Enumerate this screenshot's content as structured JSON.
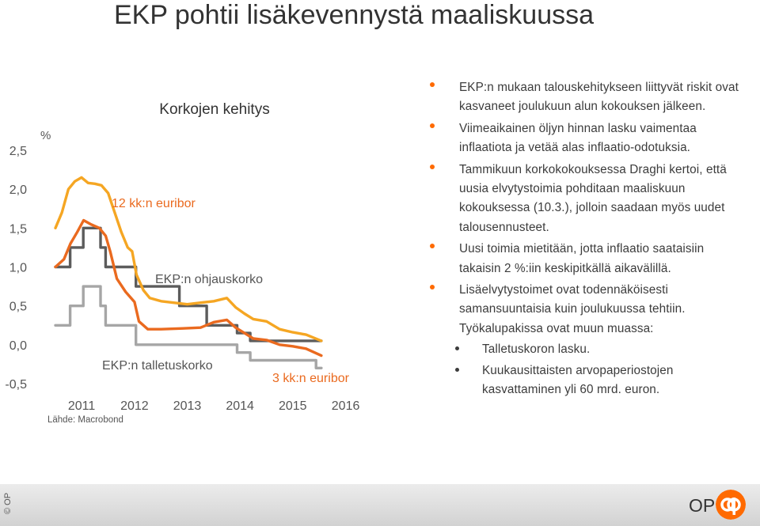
{
  "slide": {
    "title": "EKP pohtii lisäkevennystä maaliskuussa"
  },
  "colors": {
    "accent": "#ff6a00",
    "euribor12m": "#f5a623",
    "euribor3m": "#ea6a1f",
    "ecb_rate": "#5c5c5c",
    "deposit_rate": "#a6a6a6"
  },
  "chart_data": {
    "type": "line",
    "title": "Korkojen kehitys",
    "unit": "%",
    "ylim": [
      -0.5,
      2.5
    ],
    "yticks": [
      "2,5",
      "2,0",
      "1,5",
      "1,0",
      "0,5",
      "0,0",
      "-0,5"
    ],
    "xticks": [
      "2011",
      "2012",
      "2013",
      "2014",
      "2015",
      "2016"
    ],
    "source": "Lähde: Macrobond",
    "grid": false,
    "series": [
      {
        "name": "12 kk:n euribor",
        "step": false,
        "points": [
          [
            "2011-01-01",
            1.5
          ],
          [
            "2011-02-15",
            1.7
          ],
          [
            "2011-04-01",
            2.0
          ],
          [
            "2011-05-15",
            2.1
          ],
          [
            "2011-07-01",
            2.15
          ],
          [
            "2011-08-15",
            2.08
          ],
          [
            "2011-10-01",
            2.07
          ],
          [
            "2011-11-15",
            2.05
          ],
          [
            "2012-01-01",
            1.95
          ],
          [
            "2012-02-15",
            1.7
          ],
          [
            "2012-04-01",
            1.45
          ],
          [
            "2012-05-15",
            1.25
          ],
          [
            "2012-06-15",
            1.2
          ],
          [
            "2012-07-15",
            0.9
          ],
          [
            "2012-09-01",
            0.7
          ],
          [
            "2012-10-15",
            0.6
          ],
          [
            "2013-01-01",
            0.56
          ],
          [
            "2013-07-01",
            0.52
          ],
          [
            "2013-10-01",
            0.54
          ],
          [
            "2014-01-01",
            0.56
          ],
          [
            "2014-04-01",
            0.6
          ],
          [
            "2014-06-01",
            0.48
          ],
          [
            "2014-08-01",
            0.4
          ],
          [
            "2014-10-01",
            0.33
          ],
          [
            "2015-01-01",
            0.3
          ],
          [
            "2015-04-01",
            0.2
          ],
          [
            "2015-07-01",
            0.16
          ],
          [
            "2015-10-01",
            0.13
          ],
          [
            "2016-01-15",
            0.05
          ]
        ]
      },
      {
        "name": "3 kk:n euribor",
        "step": false,
        "points": [
          [
            "2011-01-01",
            1.0
          ],
          [
            "2011-03-01",
            1.1
          ],
          [
            "2011-04-15",
            1.3
          ],
          [
            "2011-06-01",
            1.45
          ],
          [
            "2011-07-15",
            1.6
          ],
          [
            "2011-09-01",
            1.55
          ],
          [
            "2011-11-01",
            1.5
          ],
          [
            "2011-12-15",
            1.4
          ],
          [
            "2012-01-15",
            1.2
          ],
          [
            "2012-03-01",
            0.85
          ],
          [
            "2012-05-01",
            0.68
          ],
          [
            "2012-07-01",
            0.55
          ],
          [
            "2012-08-01",
            0.3
          ],
          [
            "2012-10-01",
            0.2
          ],
          [
            "2013-01-01",
            0.2
          ],
          [
            "2013-06-01",
            0.21
          ],
          [
            "2013-10-01",
            0.22
          ],
          [
            "2014-01-01",
            0.29
          ],
          [
            "2014-04-01",
            0.32
          ],
          [
            "2014-06-01",
            0.22
          ],
          [
            "2014-08-01",
            0.15
          ],
          [
            "2014-10-01",
            0.08
          ],
          [
            "2015-01-01",
            0.06
          ],
          [
            "2015-04-01",
            0.0
          ],
          [
            "2015-07-01",
            -0.02
          ],
          [
            "2015-10-01",
            -0.05
          ],
          [
            "2016-01-15",
            -0.14
          ]
        ]
      },
      {
        "name": "EKP:n ohjauskorko",
        "step": true,
        "points": [
          [
            "2011-01-01",
            1.0
          ],
          [
            "2011-04-13",
            1.25
          ],
          [
            "2011-07-13",
            1.5
          ],
          [
            "2011-11-09",
            1.25
          ],
          [
            "2011-12-14",
            1.0
          ],
          [
            "2012-07-11",
            0.75
          ],
          [
            "2013-05-08",
            0.5
          ],
          [
            "2013-11-13",
            0.25
          ],
          [
            "2014-06-11",
            0.15
          ],
          [
            "2014-09-10",
            0.05
          ],
          [
            "2016-01-15",
            0.05
          ]
        ]
      },
      {
        "name": "EKP:n talletuskorko",
        "step": true,
        "points": [
          [
            "2011-01-01",
            0.25
          ],
          [
            "2011-04-13",
            0.5
          ],
          [
            "2011-07-13",
            0.75
          ],
          [
            "2011-11-09",
            0.5
          ],
          [
            "2011-12-14",
            0.25
          ],
          [
            "2012-07-11",
            0.0
          ],
          [
            "2014-06-11",
            -0.1
          ],
          [
            "2014-09-10",
            -0.2
          ],
          [
            "2015-12-09",
            -0.3
          ],
          [
            "2016-01-15",
            -0.3
          ]
        ]
      }
    ]
  },
  "bullets": [
    {
      "text": "EKP:n mukaan talouskehitykseen liittyvät riskit ovat kasvaneet joulukuun alun kokouksen jälkeen."
    },
    {
      "text": "Viimeaikainen öljyn hinnan lasku vaimentaa inflaatiota ja vetää alas inflaatio-odotuksia."
    },
    {
      "text": "Tammikuun korkokokouksessa Draghi kertoi, että uusia elvytystoimia pohditaan maaliskuun kokouksessa (10.3.), jolloin saadaan myös uudet talousennusteet."
    },
    {
      "text": "Uusi toimia mietitään, jotta inflaatio saataisiin takaisin 2 %:iin keskipitkällä aikavälillä."
    },
    {
      "text": "Lisäelvytystoimet ovat todennäköisesti samansuuntaisia kuin joulukuussa tehtiin. Työkalupakissa ovat muun muassa:",
      "sub": [
        "Talletuskoron lasku.",
        "Kuukausittaisten arvopaperiostojen kasvattaminen yli 60 mrd. euron."
      ]
    }
  ],
  "footer": {
    "copyright": "© OP",
    "logo_text": "OP"
  }
}
